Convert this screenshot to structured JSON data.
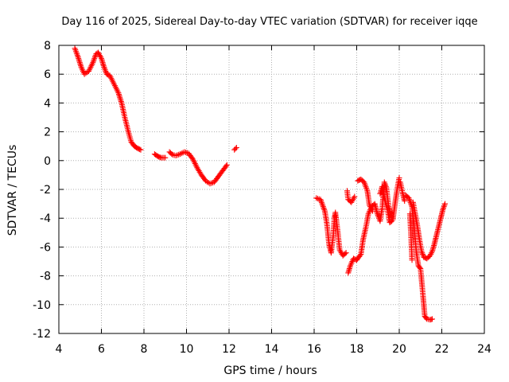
{
  "chart_data": {
    "type": "scatter",
    "title": "Day 116 of 2025, Sidereal Day-to-day VTEC variation (SDTVAR) for receiver iqqe",
    "xlabel": "GPS time / hours",
    "ylabel": "SDTVAR / TECUs",
    "xlim": [
      4,
      24
    ],
    "ylim": [
      -12,
      8
    ],
    "xticks": [
      4,
      6,
      8,
      10,
      12,
      14,
      16,
      18,
      20,
      22,
      24
    ],
    "yticks": [
      -12,
      -10,
      -8,
      -6,
      -4,
      -2,
      0,
      2,
      4,
      6,
      8
    ],
    "grid": true,
    "marker": "plus",
    "series": [
      {
        "name": "SDTVAR",
        "color": "#ff0000",
        "segments": [
          [
            [
              4.75,
              7.8
            ],
            [
              4.9,
              7.2
            ],
            [
              5.05,
              6.5
            ],
            [
              5.2,
              6.0
            ],
            [
              5.4,
              6.2
            ],
            [
              5.6,
              6.8
            ],
            [
              5.75,
              7.4
            ],
            [
              5.85,
              7.5
            ],
            [
              6.0,
              7.1
            ],
            [
              6.1,
              6.6
            ],
            [
              6.25,
              6.0
            ],
            [
              6.4,
              5.9
            ],
            [
              6.6,
              5.3
            ],
            [
              6.8,
              4.7
            ],
            [
              6.95,
              4.0
            ],
            [
              7.1,
              3.0
            ],
            [
              7.25,
              2.1
            ],
            [
              7.4,
              1.3
            ],
            [
              7.55,
              1.0
            ],
            [
              7.7,
              0.85
            ],
            [
              7.85,
              0.75
            ]
          ],
          [
            [
              8.5,
              0.45
            ],
            [
              8.65,
              0.3
            ],
            [
              8.8,
              0.2
            ],
            [
              9.0,
              0.2
            ]
          ],
          [
            [
              9.2,
              0.6
            ],
            [
              9.35,
              0.4
            ],
            [
              9.5,
              0.35
            ],
            [
              9.7,
              0.45
            ],
            [
              9.9,
              0.6
            ],
            [
              10.1,
              0.5
            ],
            [
              10.3,
              0.1
            ],
            [
              10.5,
              -0.5
            ],
            [
              10.7,
              -1.0
            ],
            [
              10.9,
              -1.4
            ],
            [
              11.1,
              -1.6
            ],
            [
              11.3,
              -1.5
            ],
            [
              11.5,
              -1.1
            ],
            [
              11.7,
              -0.7
            ],
            [
              11.9,
              -0.3
            ]
          ],
          [
            [
              12.25,
              0.75
            ],
            [
              12.35,
              0.9
            ]
          ],
          [
            [
              16.1,
              -2.6
            ],
            [
              16.3,
              -2.7
            ],
            [
              16.5,
              -3.5
            ],
            [
              16.6,
              -4.4
            ],
            [
              16.7,
              -5.8
            ],
            [
              16.8,
              -6.4
            ],
            [
              16.9,
              -5.2
            ],
            [
              16.95,
              -4.0
            ],
            [
              17.0,
              -3.6
            ],
            [
              17.1,
              -4.8
            ],
            [
              17.2,
              -6.2
            ],
            [
              17.35,
              -6.6
            ],
            [
              17.5,
              -6.4
            ]
          ],
          [
            [
              17.55,
              -2.1
            ],
            [
              17.6,
              -2.7
            ],
            [
              17.75,
              -2.9
            ],
            [
              17.9,
              -2.5
            ]
          ],
          [
            [
              17.6,
              -7.8
            ],
            [
              17.7,
              -7.3
            ],
            [
              17.85,
              -6.8
            ],
            [
              18.0,
              -6.9
            ],
            [
              18.2,
              -6.5
            ],
            [
              18.3,
              -5.5
            ],
            [
              18.45,
              -4.5
            ],
            [
              18.55,
              -3.7
            ],
            [
              18.7,
              -3.2
            ],
            [
              18.85,
              -3.0
            ],
            [
              18.95,
              -3.6
            ],
            [
              19.1,
              -4.2
            ],
            [
              19.2,
              -3.3
            ],
            [
              19.3,
              -1.5
            ],
            [
              19.4,
              -1.9
            ],
            [
              19.5,
              -3.2
            ],
            [
              19.6,
              -3.7
            ],
            [
              19.7,
              -4.1
            ],
            [
              19.8,
              -3.0
            ],
            [
              19.9,
              -2.0
            ],
            [
              20.0,
              -1.2
            ]
          ],
          [
            [
              18.05,
              -1.4
            ],
            [
              18.2,
              -1.3
            ],
            [
              18.35,
              -1.5
            ],
            [
              18.5,
              -2.1
            ],
            [
              18.6,
              -3.1
            ],
            [
              18.75,
              -3.5
            ]
          ],
          [
            [
              19.1,
              -2.3
            ],
            [
              19.2,
              -1.8
            ],
            [
              19.3,
              -2.6
            ],
            [
              19.45,
              -3.4
            ],
            [
              19.55,
              -4.3
            ],
            [
              19.65,
              -4.2
            ]
          ],
          [
            [
              20.05,
              -1.5
            ],
            [
              20.15,
              -2.2
            ],
            [
              20.25,
              -2.8
            ]
          ],
          [
            [
              20.3,
              -2.4
            ],
            [
              20.45,
              -2.6
            ],
            [
              20.6,
              -3.2
            ],
            [
              20.7,
              -4.6
            ],
            [
              20.8,
              -6.3
            ],
            [
              20.9,
              -7.3
            ],
            [
              21.0,
              -7.5
            ],
            [
              21.1,
              -9.1
            ],
            [
              21.2,
              -10.8
            ],
            [
              21.3,
              -11.0
            ],
            [
              21.45,
              -11.05
            ],
            [
              21.55,
              -11.0
            ]
          ],
          [
            [
              20.5,
              -3.7
            ],
            [
              20.55,
              -5.1
            ],
            [
              20.6,
              -6.9
            ]
          ],
          [
            [
              20.65,
              -2.9
            ],
            [
              20.75,
              -3.7
            ],
            [
              20.85,
              -4.5
            ],
            [
              20.95,
              -5.5
            ],
            [
              21.05,
              -6.3
            ],
            [
              21.15,
              -6.7
            ],
            [
              21.3,
              -6.8
            ],
            [
              21.45,
              -6.6
            ],
            [
              21.55,
              -6.3
            ],
            [
              21.65,
              -5.8
            ],
            [
              21.75,
              -5.2
            ],
            [
              21.85,
              -4.6
            ],
            [
              21.95,
              -4.0
            ],
            [
              22.05,
              -3.4
            ],
            [
              22.15,
              -3.0
            ]
          ]
        ]
      }
    ]
  }
}
